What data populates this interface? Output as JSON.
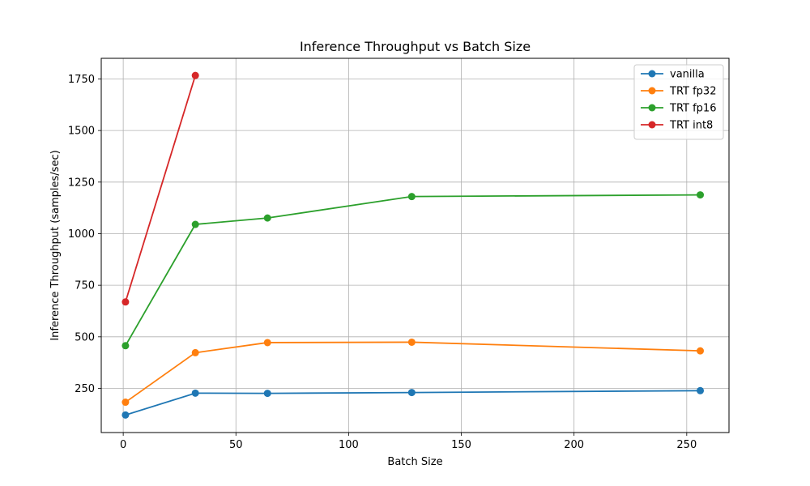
{
  "chart_data": {
    "type": "line",
    "title": "Inference Throughput vs Batch Size",
    "xlabel": "Batch Size",
    "ylabel": "Inference Throughput (samples/sec)",
    "xlim": [
      -9.75,
      268.75
    ],
    "ylim": [
      36,
      1850
    ],
    "xticks": [
      0,
      50,
      100,
      150,
      200,
      250
    ],
    "yticks": [
      250,
      500,
      750,
      1000,
      1250,
      1500,
      1750
    ],
    "grid": true,
    "legend_position": "top-right",
    "series": [
      {
        "name": "vanilla",
        "color": "#1f77b4",
        "x": [
          1,
          32,
          64,
          128,
          256
        ],
        "y": [
          121,
          227,
          226,
          230,
          239
        ]
      },
      {
        "name": "TRT fp32",
        "color": "#ff7f0e",
        "x": [
          1,
          32,
          64,
          128,
          256
        ],
        "y": [
          183,
          423,
          472,
          474,
          432
        ]
      },
      {
        "name": "TRT fp16",
        "color": "#2ca02c",
        "x": [
          1,
          32,
          64,
          128,
          256
        ],
        "y": [
          457,
          1045,
          1076,
          1180,
          1188
        ]
      },
      {
        "name": "TRT int8",
        "color": "#d62728",
        "x": [
          1,
          32
        ],
        "y": [
          669,
          1767
        ]
      }
    ]
  }
}
